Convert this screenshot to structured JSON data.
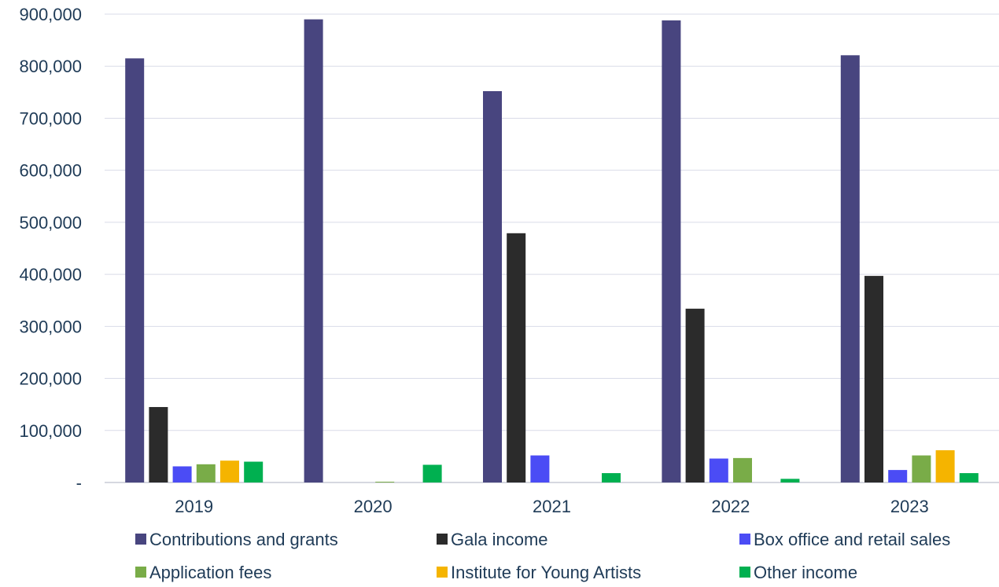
{
  "chart_data": {
    "type": "bar",
    "title": "",
    "xlabel": "",
    "ylabel": "",
    "categories": [
      "2019",
      "2020",
      "2021",
      "2022",
      "2023"
    ],
    "ylim": [
      0,
      900000
    ],
    "yticks": [
      0,
      100000,
      200000,
      300000,
      400000,
      500000,
      600000,
      700000,
      800000,
      900000
    ],
    "ytick_labels": [
      "-",
      "100,000",
      "200,000",
      "300,000",
      "400,000",
      "500,000",
      "600,000",
      "700,000",
      "800,000",
      "900,000"
    ],
    "grid": true,
    "legend": "bottom",
    "series": [
      {
        "name": "Contributions and grants",
        "color": "#48457f",
        "values": [
          815000,
          890000,
          752000,
          888000,
          821000
        ]
      },
      {
        "name": "Gala income",
        "color": "#2b2b2b",
        "values": [
          145000,
          0,
          479000,
          334000,
          397000
        ]
      },
      {
        "name": "Box office and retail sales",
        "color": "#4b4cf5",
        "values": [
          31000,
          0,
          52000,
          46000,
          24000
        ]
      },
      {
        "name": "Application fees",
        "color": "#79ac48",
        "values": [
          35000,
          1500,
          0,
          47000,
          52000
        ]
      },
      {
        "name": "Institute for Young Artists",
        "color": "#f5b400",
        "values": [
          42000,
          0,
          0,
          0,
          62000
        ]
      },
      {
        "name": "Other income",
        "color": "#00b050",
        "values": [
          40000,
          34000,
          18000,
          7000,
          18000
        ]
      }
    ]
  }
}
